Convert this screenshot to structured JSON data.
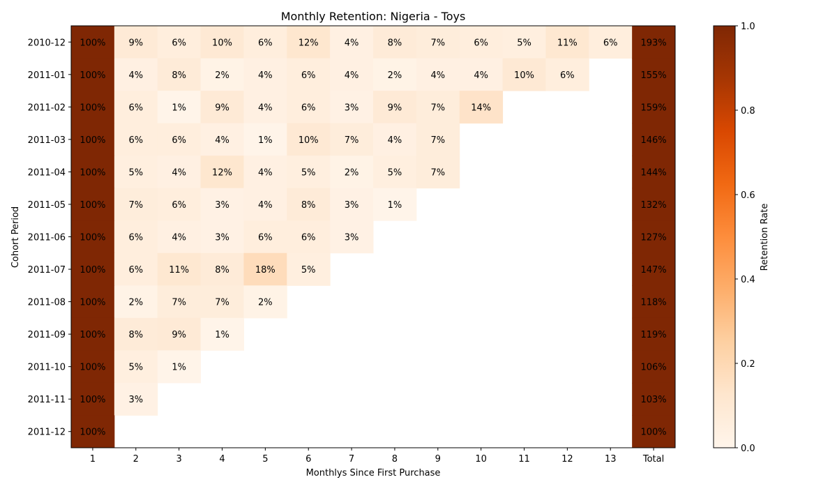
{
  "chart_data": {
    "type": "heatmap",
    "title": "Monthly Retention: Nigeria - Toys",
    "xlabel": "Monthlys Since First Purchase",
    "ylabel": "Cohort Period",
    "x_categories": [
      "1",
      "2",
      "3",
      "4",
      "5",
      "6",
      "7",
      "8",
      "9",
      "10",
      "11",
      "12",
      "13",
      "Total"
    ],
    "y_categories": [
      "2010-12",
      "2011-01",
      "2011-02",
      "2011-03",
      "2011-04",
      "2011-05",
      "2011-06",
      "2011-07",
      "2011-08",
      "2011-09",
      "2011-10",
      "2011-11",
      "2011-12"
    ],
    "values": [
      [
        1.0,
        0.09,
        0.06,
        0.1,
        0.06,
        0.12,
        0.04,
        0.08,
        0.07,
        0.06,
        0.05,
        0.11,
        0.06,
        1.93
      ],
      [
        1.0,
        0.04,
        0.08,
        0.02,
        0.04,
        0.06,
        0.04,
        0.02,
        0.04,
        0.04,
        0.1,
        0.06,
        null,
        1.55
      ],
      [
        1.0,
        0.06,
        0.01,
        0.09,
        0.04,
        0.06,
        0.03,
        0.09,
        0.07,
        0.14,
        null,
        null,
        null,
        1.59
      ],
      [
        1.0,
        0.06,
        0.06,
        0.04,
        0.01,
        0.1,
        0.07,
        0.04,
        0.07,
        null,
        null,
        null,
        null,
        1.46
      ],
      [
        1.0,
        0.05,
        0.04,
        0.12,
        0.04,
        0.05,
        0.02,
        0.05,
        0.07,
        null,
        null,
        null,
        null,
        1.44
      ],
      [
        1.0,
        0.07,
        0.06,
        0.03,
        0.04,
        0.08,
        0.03,
        0.01,
        null,
        null,
        null,
        null,
        null,
        1.32
      ],
      [
        1.0,
        0.06,
        0.04,
        0.03,
        0.06,
        0.06,
        0.03,
        null,
        null,
        null,
        null,
        null,
        null,
        1.27
      ],
      [
        1.0,
        0.06,
        0.11,
        0.08,
        0.18,
        0.05,
        null,
        null,
        null,
        null,
        null,
        null,
        null,
        1.47
      ],
      [
        1.0,
        0.02,
        0.07,
        0.07,
        0.02,
        null,
        null,
        null,
        null,
        null,
        null,
        null,
        null,
        1.18
      ],
      [
        1.0,
        0.08,
        0.09,
        0.01,
        null,
        null,
        null,
        null,
        null,
        null,
        null,
        null,
        null,
        1.19
      ],
      [
        1.0,
        0.05,
        0.01,
        null,
        null,
        null,
        null,
        null,
        null,
        null,
        null,
        null,
        null,
        1.06
      ],
      [
        1.0,
        0.03,
        null,
        null,
        null,
        null,
        null,
        null,
        null,
        null,
        null,
        null,
        null,
        1.03
      ],
      [
        1.0,
        null,
        null,
        null,
        null,
        null,
        null,
        null,
        null,
        null,
        null,
        null,
        null,
        1.0
      ]
    ],
    "cell_labels": [
      [
        "100%",
        "9%",
        "6%",
        "10%",
        "6%",
        "12%",
        "4%",
        "8%",
        "7%",
        "6%",
        "5%",
        "11%",
        "6%",
        "193%"
      ],
      [
        "100%",
        "4%",
        "8%",
        "2%",
        "4%",
        "6%",
        "4%",
        "2%",
        "4%",
        "4%",
        "10%",
        "6%",
        "",
        "155%"
      ],
      [
        "100%",
        "6%",
        "1%",
        "9%",
        "4%",
        "6%",
        "3%",
        "9%",
        "7%",
        "14%",
        "",
        "",
        "",
        "159%"
      ],
      [
        "100%",
        "6%",
        "6%",
        "4%",
        "1%",
        "10%",
        "7%",
        "4%",
        "7%",
        "",
        "",
        "",
        "",
        "146%"
      ],
      [
        "100%",
        "5%",
        "4%",
        "12%",
        "4%",
        "5%",
        "2%",
        "5%",
        "7%",
        "",
        "",
        "",
        "",
        "144%"
      ],
      [
        "100%",
        "7%",
        "6%",
        "3%",
        "4%",
        "8%",
        "3%",
        "1%",
        "",
        "",
        "",
        "",
        "",
        "132%"
      ],
      [
        "100%",
        "6%",
        "4%",
        "3%",
        "6%",
        "6%",
        "3%",
        "",
        "",
        "",
        "",
        "",
        "",
        "127%"
      ],
      [
        "100%",
        "6%",
        "11%",
        "8%",
        "18%",
        "5%",
        "",
        "",
        "",
        "",
        "",
        "",
        "",
        "147%"
      ],
      [
        "100%",
        "2%",
        "7%",
        "7%",
        "2%",
        "",
        "",
        "",
        "",
        "",
        "",
        "",
        "",
        "118%"
      ],
      [
        "100%",
        "8%",
        "9%",
        "1%",
        "",
        "",
        "",
        "",
        "",
        "",
        "",
        "",
        "",
        "119%"
      ],
      [
        "100%",
        "5%",
        "1%",
        "",
        "",
        "",
        "",
        "",
        "",
        "",
        "",
        "",
        "",
        "106%"
      ],
      [
        "100%",
        "3%",
        "",
        "",
        "",
        "",
        "",
        "",
        "",
        "",
        "",
        "",
        "",
        "103%"
      ],
      [
        "100%",
        "",
        "",
        "",
        "",
        "",
        "",
        "",
        "",
        "",
        "",
        "",
        "",
        "100%"
      ]
    ],
    "colorbar": {
      "label": "Retention Rate",
      "range": [
        0,
        1
      ],
      "ticks": [
        "0.0",
        "0.2",
        "0.4",
        "0.6",
        "0.8",
        "1.0"
      ],
      "colormap": "Oranges",
      "stops": [
        "#fff5eb",
        "#fee6ce",
        "#fdd0a2",
        "#fdae6b",
        "#fd8d3c",
        "#f16913",
        "#d94801",
        "#a63603",
        "#7f2704"
      ]
    },
    "grid": false,
    "legend": "colorbar-right"
  }
}
